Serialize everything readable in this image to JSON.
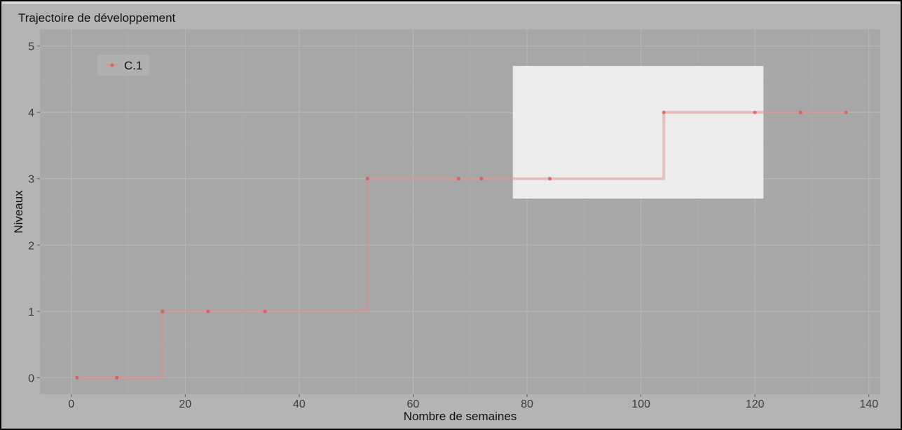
{
  "chart_data": {
    "type": "line",
    "step": true,
    "title": "Trajectoire de développement",
    "xlabel": "Nombre de semaines",
    "ylabel": "Niveaux",
    "xlim": [
      -5.5,
      142
    ],
    "ylim": [
      -0.25,
      5.25
    ],
    "xticks": [
      0,
      20,
      40,
      60,
      80,
      100,
      120,
      140
    ],
    "yticks": [
      0,
      1,
      2,
      3,
      4,
      5
    ],
    "grid": true,
    "legend": {
      "position": "top-left"
    },
    "highlight_region": {
      "x": [
        77.5,
        121.5
      ],
      "y": [
        2.7,
        4.7
      ]
    },
    "colors": {
      "series": "#e58a8a",
      "point": "#d9534f",
      "panel_background": "#a7a7a7",
      "outer_background": "#b4b4b4",
      "grid": "#b8b8b8",
      "highlight": "#ececec"
    },
    "series": [
      {
        "name": "C.1",
        "x": [
          1,
          8,
          16,
          24,
          34,
          52,
          68,
          72,
          84,
          104,
          120,
          128,
          136
        ],
        "y": [
          0,
          0,
          1,
          1,
          1,
          3,
          3,
          3,
          3,
          4,
          4,
          4,
          4
        ]
      }
    ]
  }
}
